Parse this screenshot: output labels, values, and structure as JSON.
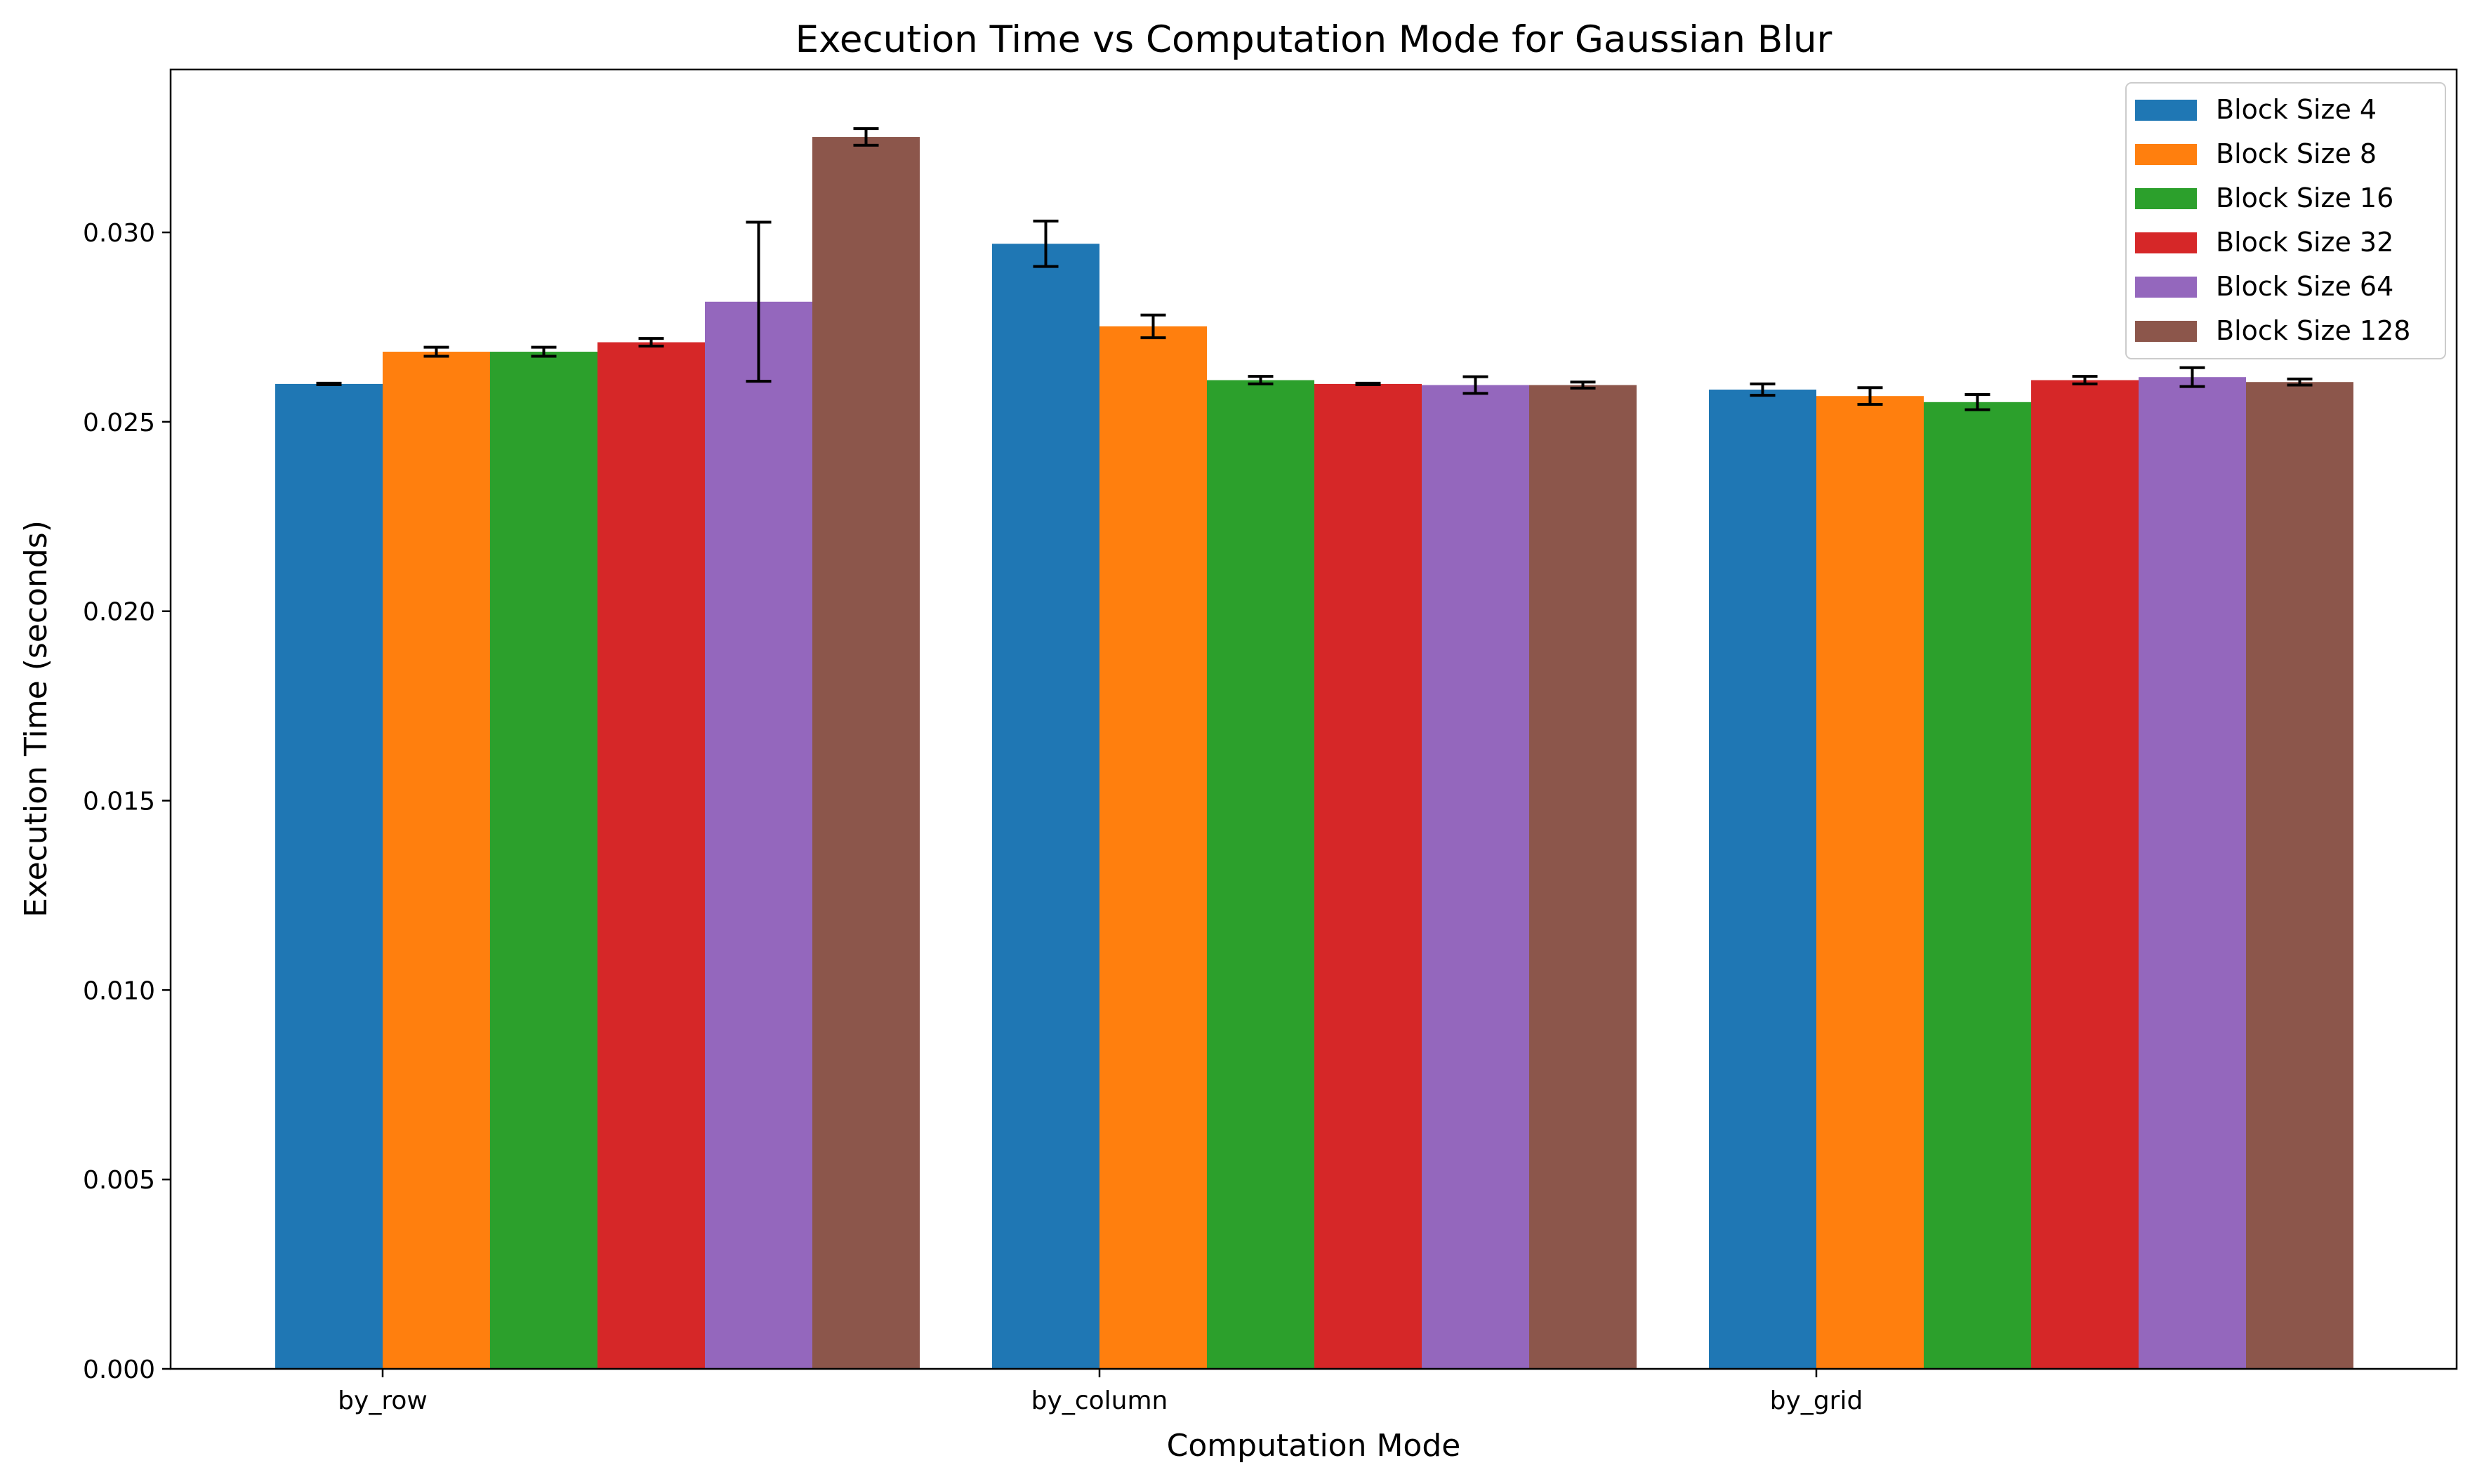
{
  "chart_data": {
    "type": "bar",
    "title": "Execution Time vs Computation Mode for Gaussian Blur",
    "xlabel": "Computation Mode",
    "ylabel": "Execution Time (seconds)",
    "categories": [
      "by_row",
      "by_column",
      "by_grid"
    ],
    "ylim": [
      0,
      0.0343
    ],
    "yticks": [
      0.0,
      0.005,
      0.01,
      0.015,
      0.02,
      0.025,
      0.03
    ],
    "ytick_labels": [
      "0.000",
      "0.005",
      "0.010",
      "0.015",
      "0.020",
      "0.025",
      "0.030"
    ],
    "grid": false,
    "legend_position": "top-right",
    "series": [
      {
        "name": "Block Size 4",
        "color": "#1f77b4",
        "values": [
          0.026,
          0.0297,
          0.02585
        ],
        "errors": [
          2e-05,
          0.0006,
          0.00015
        ]
      },
      {
        "name": "Block Size 8",
        "color": "#ff7f0e",
        "values": [
          0.02685,
          0.02752,
          0.02568
        ],
        "errors": [
          0.00012,
          0.0003,
          0.00022
        ]
      },
      {
        "name": "Block Size 16",
        "color": "#2ca02c",
        "values": [
          0.02685,
          0.0261,
          0.02552
        ],
        "errors": [
          0.00012,
          0.0001,
          0.0002
        ]
      },
      {
        "name": "Block Size 32",
        "color": "#d62728",
        "values": [
          0.0271,
          0.026,
          0.0261
        ],
        "errors": [
          0.0001,
          2e-05,
          0.0001
        ]
      },
      {
        "name": "Block Size 64",
        "color": "#9467bd",
        "values": [
          0.02817,
          0.02597,
          0.02618
        ],
        "errors": [
          0.0021,
          0.00022,
          0.00025
        ]
      },
      {
        "name": "Block Size 128",
        "color": "#8c564b",
        "values": [
          0.03252,
          0.02597,
          0.02605
        ],
        "errors": [
          0.00022,
          8e-05,
          8e-05
        ]
      }
    ]
  }
}
